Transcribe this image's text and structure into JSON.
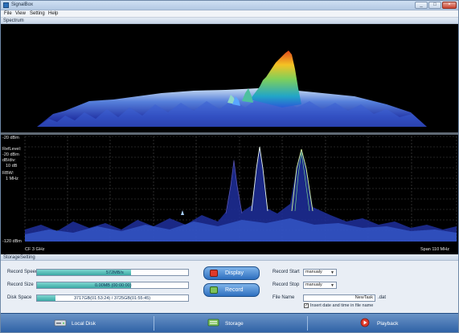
{
  "window": {
    "title": "SignalBox",
    "minimize": "_",
    "maximize": "□",
    "close": "×"
  },
  "menu": [
    "File",
    "View",
    "Setting",
    "Help"
  ],
  "spectrum_panel": {
    "label": "Spectrum"
  },
  "plot": {
    "top_label": "-20 dBm",
    "bottom_label": "-120 dBm",
    "ref_level_label": "RefLevel:",
    "ref_level_value": "-20 dBm",
    "ddiv_label": "dB/div:",
    "ddiv_value": "10 dB",
    "rbw_label": "RBW:",
    "rbw_value": "1 MHz",
    "center_freq": "CF 3 GHz",
    "span": "Span 110 MHz",
    "colors": {
      "trace": "#2f52c9",
      "peak": "#d7f5a0",
      "grid": "#4a4a4a"
    }
  },
  "storage": {
    "label": "StorageSetting",
    "record_speed": {
      "label": "Record Speed",
      "value": "572MB/s",
      "fill": 0.62
    },
    "record_size": {
      "label": "Record Size",
      "value": "0.00MB (00:00:00)",
      "fill": 0.62
    },
    "disk_space": {
      "label": "Disk Space",
      "value": "3717GB(01:53:24) / 3725GB(01:55:45)",
      "fill": 0.12
    },
    "display_button": "Display",
    "record_button": "Record",
    "record_start": {
      "label": "Record Start",
      "value": "manualy"
    },
    "record_stop": {
      "label": "Record Stop",
      "value": "manualy"
    },
    "file_name": {
      "label": "File Name",
      "value": "NewTask",
      "ext": ".dat"
    },
    "insert_date": {
      "label": "Insert date and time in file name",
      "checked": true
    }
  },
  "bottom_nav": {
    "local_disk": "Local Disk",
    "storage": "Storage",
    "playback": "Playback"
  }
}
